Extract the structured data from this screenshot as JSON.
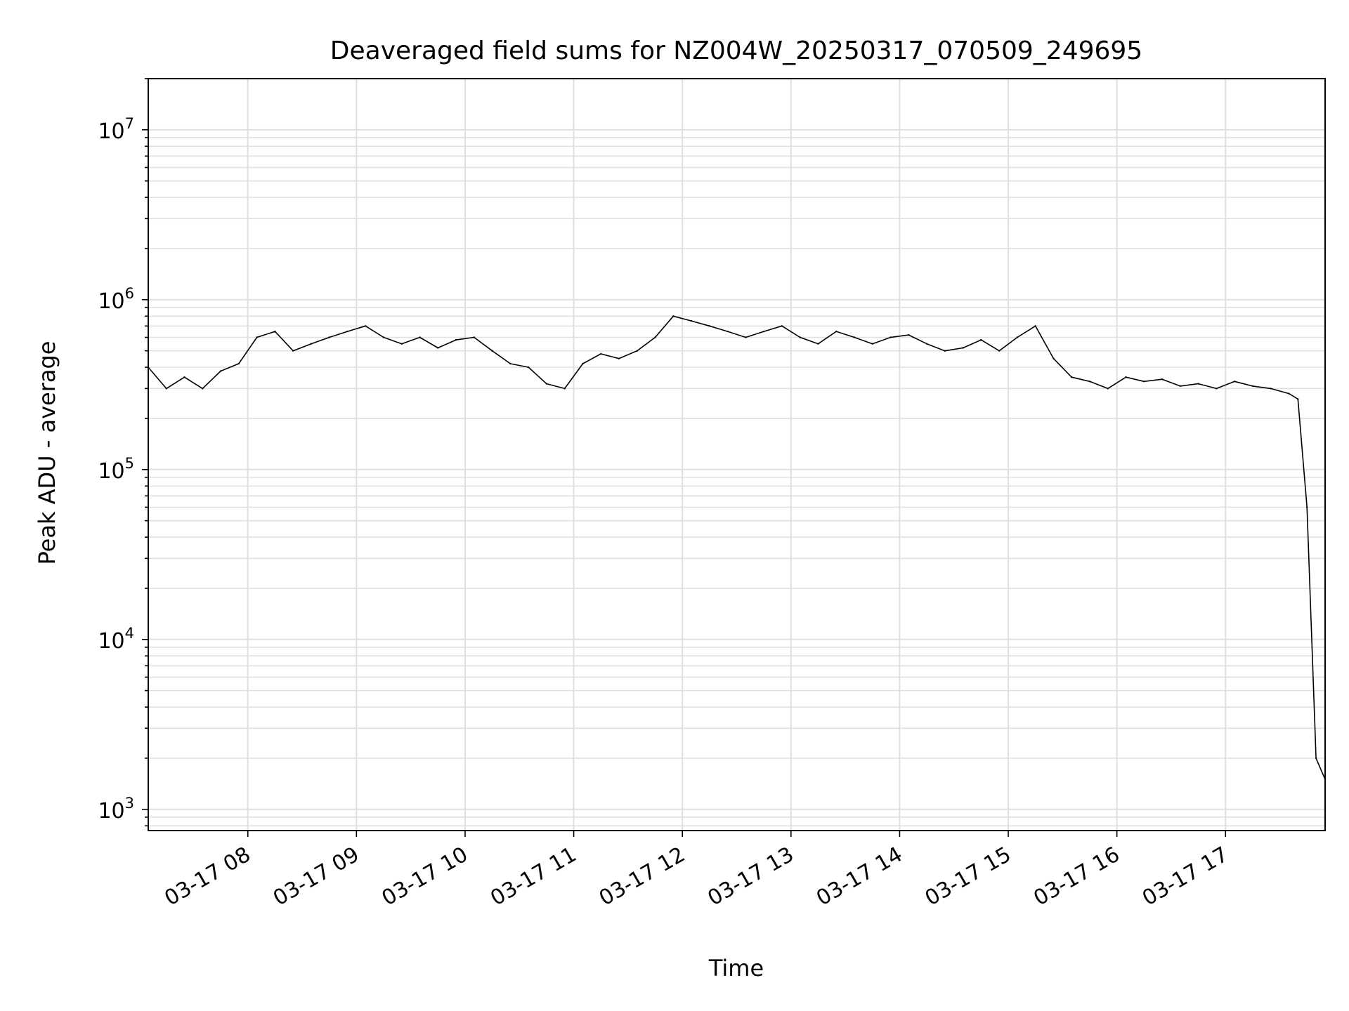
{
  "chart_data": {
    "type": "line",
    "title": "Deaveraged field sums for NZ004W_20250317_070509_249695",
    "xlabel": "Time",
    "ylabel": "Peak ADU - average",
    "yscale": "log",
    "ylim": [
      750,
      20000000
    ],
    "xlim": [
      "03-17 07:05",
      "03-17 17:55"
    ],
    "grid": true,
    "line_color": "#000000",
    "grid_color": "#e0e0e0",
    "x_ticks": [
      "03-17 08",
      "03-17 09",
      "03-17 10",
      "03-17 11",
      "03-17 12",
      "03-17 13",
      "03-17 14",
      "03-17 15",
      "03-17 16",
      "03-17 17"
    ],
    "y_ticks": [
      {
        "base": "10",
        "exp": "3",
        "value": 1000
      },
      {
        "base": "10",
        "exp": "4",
        "value": 10000
      },
      {
        "base": "10",
        "exp": "5",
        "value": 100000
      },
      {
        "base": "10",
        "exp": "6",
        "value": 1000000
      },
      {
        "base": "10",
        "exp": "7",
        "value": 10000000
      }
    ],
    "series": [
      {
        "x": [
          "03-17 07:05",
          "03-17 07:15",
          "03-17 07:25",
          "03-17 07:35",
          "03-17 07:45",
          "03-17 07:55",
          "03-17 08:05",
          "03-17 08:15",
          "03-17 08:25",
          "03-17 08:35",
          "03-17 08:45",
          "03-17 08:55",
          "03-17 09:05",
          "03-17 09:15",
          "03-17 09:25",
          "03-17 09:35",
          "03-17 09:45",
          "03-17 09:55",
          "03-17 10:05",
          "03-17 10:15",
          "03-17 10:25",
          "03-17 10:35",
          "03-17 10:45",
          "03-17 10:55",
          "03-17 11:05",
          "03-17 11:15",
          "03-17 11:25",
          "03-17 11:35",
          "03-17 11:45",
          "03-17 11:55",
          "03-17 12:05",
          "03-17 12:15",
          "03-17 12:25",
          "03-17 12:35",
          "03-17 12:45",
          "03-17 12:55",
          "03-17 13:05",
          "03-17 13:15",
          "03-17 13:25",
          "03-17 13:35",
          "03-17 13:45",
          "03-17 13:55",
          "03-17 14:05",
          "03-17 14:15",
          "03-17 14:25",
          "03-17 14:35",
          "03-17 14:45",
          "03-17 14:55",
          "03-17 15:05",
          "03-17 15:15",
          "03-17 15:25",
          "03-17 15:35",
          "03-17 15:45",
          "03-17 15:55",
          "03-17 16:05",
          "03-17 16:15",
          "03-17 16:25",
          "03-17 16:35",
          "03-17 16:45",
          "03-17 16:55",
          "03-17 17:05",
          "03-17 17:15",
          "03-17 17:25",
          "03-17 17:35",
          "03-17 17:40",
          "03-17 17:45",
          "03-17 17:50",
          "03-17 17:55"
        ],
        "y": [
          400000,
          300000,
          350000,
          300000,
          380000,
          420000,
          600000,
          650000,
          500000,
          550000,
          600000,
          650000,
          700000,
          600000,
          550000,
          600000,
          520000,
          580000,
          600000,
          500000,
          420000,
          400000,
          320000,
          300000,
          420000,
          480000,
          450000,
          500000,
          600000,
          800000,
          750000,
          700000,
          650000,
          600000,
          650000,
          700000,
          600000,
          550000,
          650000,
          600000,
          550000,
          600000,
          620000,
          550000,
          500000,
          520000,
          580000,
          500000,
          600000,
          700000,
          450000,
          350000,
          330000,
          300000,
          350000,
          330000,
          340000,
          310000,
          320000,
          300000,
          330000,
          310000,
          300000,
          280000,
          260000,
          60000,
          2000,
          1500
        ]
      }
    ]
  }
}
